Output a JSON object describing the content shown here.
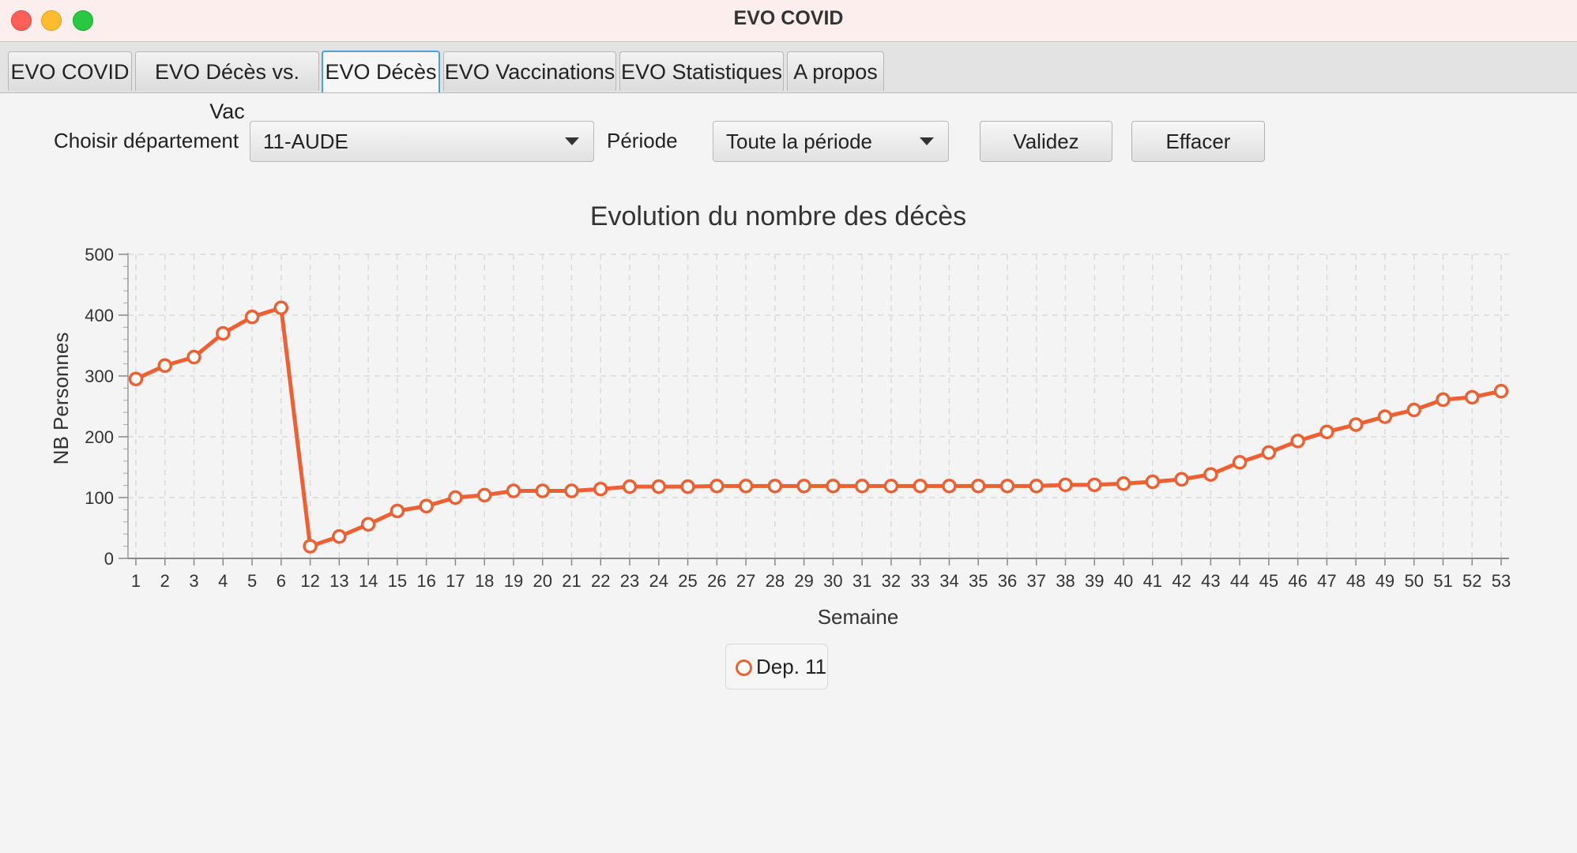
{
  "window": {
    "title": "EVO COVID"
  },
  "tabs": [
    {
      "label": "EVO COVID"
    },
    {
      "label": "EVO Décès vs. Vac"
    },
    {
      "label": "EVO Décès"
    },
    {
      "label": "EVO Vaccinations"
    },
    {
      "label": "EVO Statistiques"
    },
    {
      "label": "A propos"
    }
  ],
  "active_tab": "EVO Décès",
  "controls": {
    "department_label": "Choisir département",
    "department_value": "11-AUDE",
    "period_label": "Période",
    "period_value": "Toute la période",
    "validate_label": "Validez",
    "clear_label": "Effacer"
  },
  "colors": {
    "series": "#ee6032",
    "accent": "#4aa3df"
  },
  "chart_data": {
    "type": "line",
    "title": "Evolution du nombre des décès",
    "xlabel": "Semaine",
    "ylabel": "NB Personnes",
    "ylim": [
      0,
      500
    ],
    "yticks": [
      "0",
      "100",
      "200",
      "300",
      "400",
      "500"
    ],
    "grid": true,
    "legend_position": "bottom",
    "categories": [
      "1",
      "2",
      "3",
      "4",
      "5",
      "6",
      "12",
      "13",
      "14",
      "15",
      "16",
      "17",
      "18",
      "19",
      "20",
      "21",
      "22",
      "23",
      "24",
      "25",
      "26",
      "27",
      "28",
      "29",
      "30",
      "31",
      "32",
      "33",
      "34",
      "35",
      "36",
      "37",
      "38",
      "39",
      "40",
      "41",
      "42",
      "43",
      "44",
      "45",
      "46",
      "47",
      "48",
      "49",
      "50",
      "51",
      "52",
      "53"
    ],
    "series": [
      {
        "name": "Dep. 11",
        "values": [
          295,
          317,
          331,
          370,
          397,
          412,
          20,
          36,
          56,
          78,
          86,
          100,
          104,
          111,
          111,
          111,
          114,
          118,
          118,
          118,
          119,
          119,
          119,
          119,
          119,
          119,
          119,
          119,
          119,
          119,
          119,
          119,
          121,
          121,
          123,
          126,
          130,
          138,
          158,
          174,
          193,
          208,
          220,
          233,
          244,
          261,
          265,
          275
        ]
      }
    ]
  }
}
